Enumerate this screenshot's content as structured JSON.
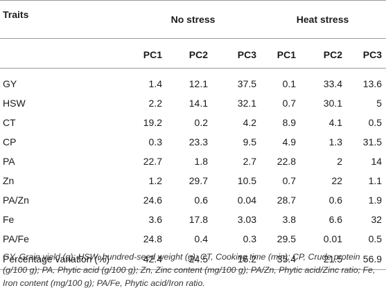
{
  "header": {
    "traits_label": "Traits",
    "groups": [
      "No stress",
      "Heat stress"
    ],
    "pcs": [
      "PC1",
      "PC2",
      "PC3",
      "PC1",
      "PC2",
      "PC3"
    ]
  },
  "rows": [
    {
      "trait": "GY",
      "values": [
        "1.4",
        "12.1",
        "37.5",
        "0.1",
        "33.4",
        "13.6"
      ]
    },
    {
      "trait": "HSW",
      "values": [
        "2.2",
        "14.1",
        "32.1",
        "0.7",
        "30.1",
        "5"
      ]
    },
    {
      "trait": "CT",
      "values": [
        "19.2",
        "0.2",
        "4.2",
        "8.9",
        "4.1",
        "0.5"
      ]
    },
    {
      "trait": "CP",
      "values": [
        "0.3",
        "23.3",
        "9.5",
        "4.9",
        "1.3",
        "31.5"
      ]
    },
    {
      "trait": "PA",
      "values": [
        "22.7",
        "1.8",
        "2.7",
        "22.8",
        "2",
        "14"
      ]
    },
    {
      "trait": "Zn",
      "values": [
        "1.2",
        "29.7",
        "10.5",
        "0.7",
        "22",
        "1.1"
      ]
    },
    {
      "trait": "PA/Zn",
      "values": [
        "24.6",
        "0.6",
        "0.04",
        "28.7",
        "0.6",
        "1.9"
      ]
    },
    {
      "trait": "Fe",
      "values": [
        "3.6",
        "17.8",
        "3.03",
        "3.8",
        "6.6",
        "32"
      ]
    },
    {
      "trait": "PA/Fe",
      "values": [
        "24.8",
        "0.4",
        "0.3",
        "29.5",
        "0.01",
        "0.5"
      ]
    },
    {
      "trait": "Percentage variation (%)",
      "values": [
        "42.4",
        "24.5",
        "16.2",
        "35.4",
        "21.5",
        "56.9"
      ]
    }
  ],
  "footnote": "GY, Grain yield (g); HSW, hundred-seed weight (g); CT, Cooking time (min); CP, Crude protein (g/100 g); PA, Phytic acid (g/100 g); Zn, Zinc content (mg/100 g); PA/Zn, Phytic acid/Zinc ratio; Fe, Iron content (mg/100 g); PA/Fe, Phytic acid/Iron ratio."
}
